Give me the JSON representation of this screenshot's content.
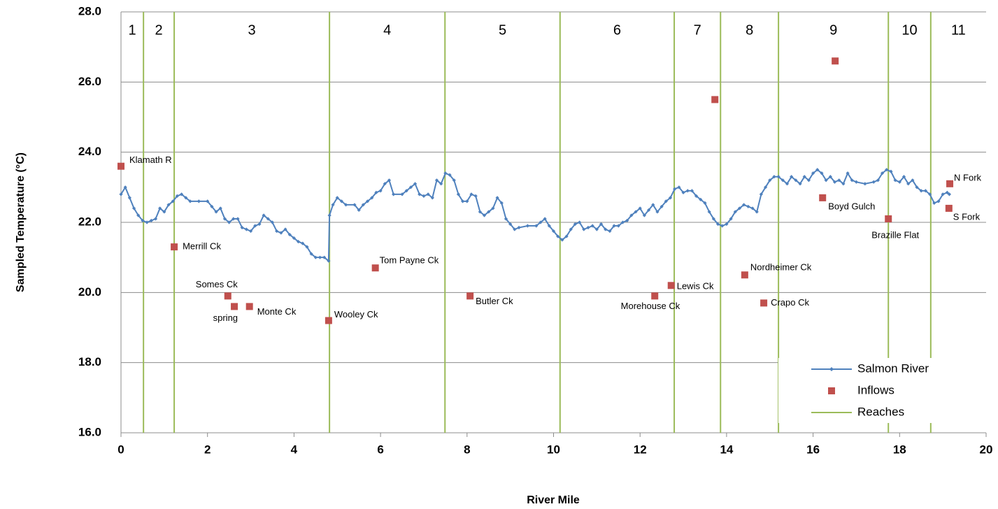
{
  "chart_data": {
    "type": "line",
    "x_label": "River Mile",
    "y_label": "Sampled Temperature (°C)",
    "xlim": [
      0,
      20
    ],
    "xticks": [
      0,
      2,
      4,
      6,
      8,
      10,
      12,
      14,
      16,
      18,
      20
    ],
    "ylim": [
      16,
      28
    ],
    "yticks": [
      {
        "value": 16,
        "label": "16.0"
      },
      {
        "value": 18,
        "label": "18.0"
      },
      {
        "value": 20,
        "label": "20.0"
      },
      {
        "value": 22,
        "label": "22.0"
      },
      {
        "value": 24,
        "label": "24.0"
      },
      {
        "value": 26,
        "label": "26.0"
      },
      {
        "value": 28,
        "label": "28.0"
      }
    ],
    "grid": true,
    "legend": "lower right",
    "series": [
      {
        "name": "Salmon River",
        "color": "#4f81bd",
        "x": [
          0,
          0.1,
          0.2,
          0.3,
          0.4,
          0.5,
          0.6,
          0.7,
          0.8,
          0.9,
          1.0,
          1.1,
          1.2,
          1.3,
          1.4,
          1.5,
          1.6,
          1.8,
          2.0,
          2.1,
          2.2,
          2.3,
          2.4,
          2.5,
          2.6,
          2.7,
          2.8,
          2.9,
          3.0,
          3.1,
          3.2,
          3.3,
          3.4,
          3.5,
          3.6,
          3.7,
          3.8,
          3.9,
          4.0,
          4.1,
          4.2,
          4.3,
          4.4,
          4.5,
          4.6,
          4.7,
          4.8,
          4.82,
          4.9,
          5.0,
          5.1,
          5.2,
          5.4,
          5.5,
          5.6,
          5.7,
          5.8,
          5.9,
          6.0,
          6.1,
          6.2,
          6.3,
          6.5,
          6.6,
          6.7,
          6.8,
          6.9,
          7.0,
          7.1,
          7.2,
          7.3,
          7.4,
          7.5,
          7.6,
          7.7,
          7.8,
          7.9,
          8.0,
          8.1,
          8.2,
          8.3,
          8.4,
          8.5,
          8.6,
          8.7,
          8.8,
          8.9,
          9.0,
          9.1,
          9.2,
          9.4,
          9.6,
          9.7,
          9.8,
          9.9,
          10.0,
          10.1,
          10.2,
          10.3,
          10.4,
          10.5,
          10.6,
          10.7,
          10.8,
          10.9,
          11.0,
          11.1,
          11.2,
          11.3,
          11.4,
          11.5,
          11.6,
          11.7,
          11.8,
          11.9,
          12.0,
          12.1,
          12.2,
          12.3,
          12.4,
          12.5,
          12.6,
          12.7,
          12.8,
          12.9,
          13.0,
          13.1,
          13.2,
          13.3,
          13.4,
          13.5,
          13.6,
          13.7,
          13.8,
          13.9,
          14.0,
          14.1,
          14.2,
          14.3,
          14.4,
          14.5,
          14.6,
          14.7,
          14.8,
          14.9,
          15.0,
          15.1,
          15.2,
          15.3,
          15.4,
          15.5,
          15.6,
          15.7,
          15.8,
          15.9,
          16.0,
          16.1,
          16.2,
          16.3,
          16.4,
          16.5,
          16.6,
          16.7,
          16.8,
          16.9,
          17.0,
          17.2,
          17.4,
          17.5,
          17.6,
          17.7,
          17.8,
          17.9,
          18.0,
          18.1,
          18.2,
          18.3,
          18.4,
          18.5,
          18.6,
          18.7,
          18.8,
          18.9,
          19.0,
          19.1,
          19.15
        ],
        "values": [
          22.8,
          23.0,
          22.7,
          22.4,
          22.2,
          22.05,
          22.0,
          22.05,
          22.1,
          22.4,
          22.3,
          22.5,
          22.6,
          22.75,
          22.8,
          22.7,
          22.6,
          22.6,
          22.6,
          22.45,
          22.3,
          22.4,
          22.1,
          22.0,
          22.1,
          22.1,
          21.85,
          21.8,
          21.75,
          21.9,
          21.95,
          22.2,
          22.1,
          22.0,
          21.75,
          21.7,
          21.8,
          21.65,
          21.55,
          21.45,
          21.4,
          21.3,
          21.1,
          21.0,
          21.0,
          21.0,
          20.9,
          22.2,
          22.5,
          22.7,
          22.6,
          22.5,
          22.5,
          22.35,
          22.5,
          22.6,
          22.7,
          22.85,
          22.9,
          23.1,
          23.2,
          22.8,
          22.8,
          22.9,
          23.0,
          23.1,
          22.8,
          22.75,
          22.8,
          22.7,
          23.2,
          23.1,
          23.4,
          23.35,
          23.2,
          22.8,
          22.6,
          22.6,
          22.8,
          22.75,
          22.3,
          22.2,
          22.3,
          22.4,
          22.7,
          22.55,
          22.1,
          21.95,
          21.8,
          21.85,
          21.9,
          21.9,
          22.0,
          22.1,
          21.9,
          21.75,
          21.6,
          21.5,
          21.6,
          21.8,
          21.95,
          22.0,
          21.8,
          21.85,
          21.9,
          21.8,
          21.95,
          21.8,
          21.75,
          21.9,
          21.9,
          22.0,
          22.05,
          22.2,
          22.3,
          22.4,
          22.2,
          22.35,
          22.5,
          22.3,
          22.45,
          22.6,
          22.7,
          22.95,
          23.0,
          22.85,
          22.9,
          22.9,
          22.75,
          22.65,
          22.55,
          22.3,
          22.1,
          21.95,
          21.9,
          21.95,
          22.1,
          22.3,
          22.4,
          22.5,
          22.45,
          22.4,
          22.3,
          22.8,
          23.0,
          23.2,
          23.3,
          23.3,
          23.2,
          23.1,
          23.3,
          23.2,
          23.1,
          23.3,
          23.2,
          23.4,
          23.5,
          23.4,
          23.2,
          23.3,
          23.15,
          23.2,
          23.1,
          23.4,
          23.2,
          23.15,
          23.1,
          23.15,
          23.2,
          23.4,
          23.5,
          23.45,
          23.2,
          23.15,
          23.3,
          23.1,
          23.2,
          23.0,
          22.9,
          22.9,
          22.8,
          22.55,
          22.6,
          22.8,
          22.85,
          22.8
        ]
      },
      {
        "name": "Inflows",
        "type": "scatter",
        "color": "#c0504d",
        "x": [
          0,
          1.23,
          2.47,
          2.62,
          2.97,
          4.8,
          5.88,
          8.07,
          12.34,
          12.72,
          13.73,
          14.42,
          14.86,
          16.22,
          16.51,
          17.74,
          19.16,
          19.14
        ],
        "values": [
          23.6,
          21.3,
          19.9,
          19.6,
          19.6,
          19.2,
          20.7,
          19.9,
          19.9,
          20.2,
          25.5,
          20.5,
          19.7,
          22.7,
          26.6,
          22.1,
          23.1,
          22.4
        ],
        "labels": [
          "Klamath R",
          "Merrill Ck",
          "Somes Ck",
          "spring",
          "Monte Ck",
          "Wooley Ck",
          "Tom Payne Ck",
          "Butler Ck",
          "Morehouse Ck",
          "Lewis Ck",
          null,
          "Nordheimer Ck",
          "Crapo Ck",
          "Boyd Gulch",
          null,
          "Brazille Flat",
          "N Fork",
          "S Fork"
        ]
      }
    ],
    "reaches": {
      "name": "Reaches",
      "color": "#9bbb59",
      "x": [
        0.52,
        1.23,
        4.82,
        7.49,
        10.15,
        12.79,
        13.86,
        15.2,
        17.74,
        18.72
      ],
      "labels": [
        "1",
        "2",
        "3",
        "4",
        "5",
        "6",
        "7",
        "8",
        "9",
        "10",
        "11"
      ]
    }
  }
}
